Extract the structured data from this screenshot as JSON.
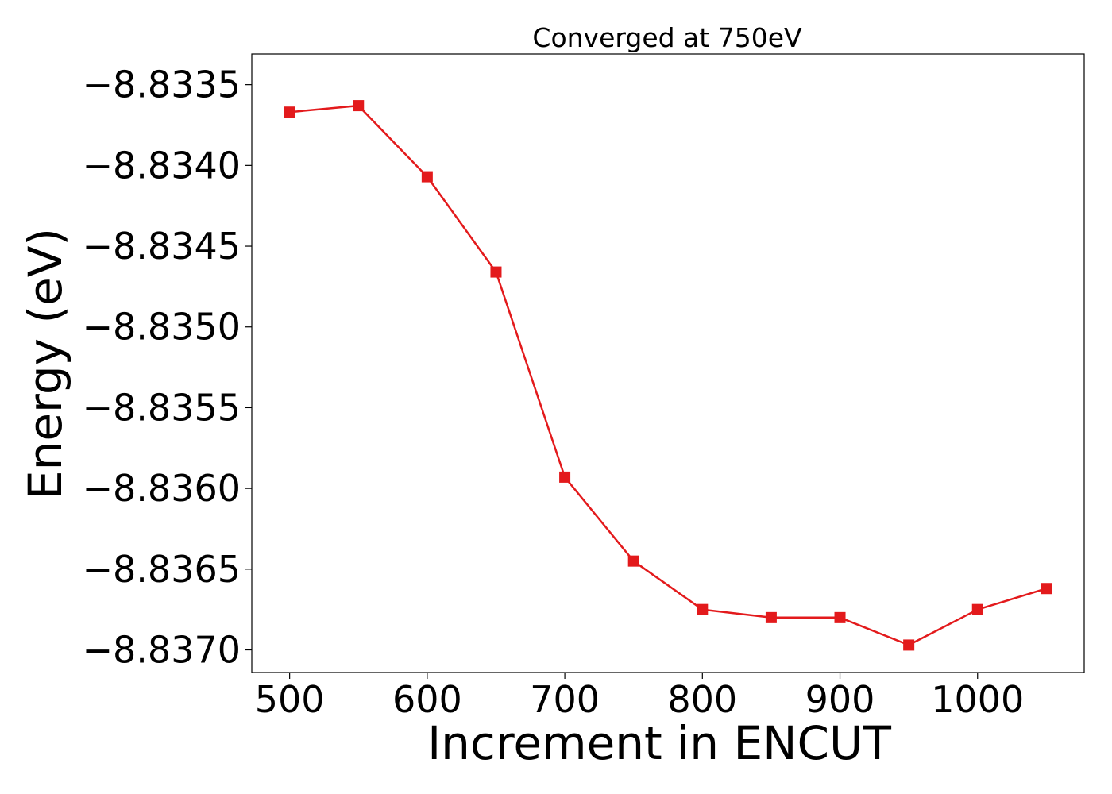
{
  "chart_data": {
    "type": "line",
    "title": "Converged at 750eV",
    "xlabel": "Increment in ENCUT",
    "ylabel": "Energy (eV)",
    "xlim": [
      472.5,
      1077.5
    ],
    "ylim": [
      -8.83714,
      -8.83331
    ],
    "x_ticks": [
      500,
      600,
      700,
      800,
      900,
      1000
    ],
    "x_tick_labels": [
      "500",
      "600",
      "700",
      "800",
      "900",
      "1000"
    ],
    "y_ticks": [
      -8.8335,
      -8.834,
      -8.8345,
      -8.835,
      -8.8355,
      -8.836,
      -8.8365,
      -8.837
    ],
    "y_tick_labels": [
      "−8.8335",
      "−8.8340",
      "−8.8345",
      "−8.8350",
      "−8.8355",
      "−8.8360",
      "−8.8365",
      "−8.8370"
    ],
    "grid": false,
    "series": [
      {
        "color": "#e31a1c",
        "marker": "square",
        "x": [
          500,
          550,
          600,
          650,
          700,
          750,
          800,
          850,
          900,
          950,
          1000,
          1050
        ],
        "y": [
          -8.83367,
          -8.83363,
          -8.83407,
          -8.83466,
          -8.83593,
          -8.83645,
          -8.83675,
          -8.8368,
          -8.8368,
          -8.83697,
          -8.83675,
          -8.83662
        ]
      }
    ]
  }
}
